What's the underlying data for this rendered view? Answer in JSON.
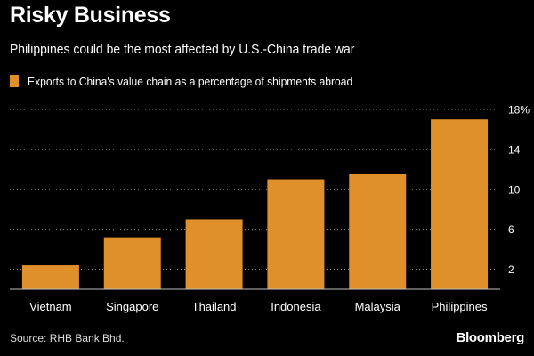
{
  "chart_data": {
    "type": "bar",
    "title": "Risky Business",
    "subtitle": "Philippines could be the most affected by U.S.-China trade war",
    "legend": [
      {
        "name": "Exports to China's value chain as a percentage of shipments abroad",
        "color": "#e0902a"
      }
    ],
    "categories": [
      "Vietnam",
      "Singapore",
      "Thailand",
      "Indonesia",
      "Malaysia",
      "Philippines"
    ],
    "series": [
      {
        "name": "Exports to China's value chain as a percentage of shipments abroad",
        "values": [
          2.4,
          5.2,
          7.0,
          11.0,
          11.5,
          17.0
        ]
      }
    ],
    "yticks": [
      {
        "value": 2,
        "label": "2"
      },
      {
        "value": 6,
        "label": "6"
      },
      {
        "value": 10,
        "label": "10"
      },
      {
        "value": 14,
        "label": "14"
      },
      {
        "value": 18,
        "label": "18%"
      }
    ],
    "ylim": [
      0,
      18
    ],
    "xlabel": "",
    "ylabel": "",
    "grid": true,
    "y_axis_side": "right",
    "colors": {
      "bar": "#e0902a",
      "background": "#000000",
      "grid": "#8a8a8a"
    }
  },
  "footer": {
    "source": "Source: RHB Bank Bhd.",
    "brand": "Bloomberg"
  }
}
